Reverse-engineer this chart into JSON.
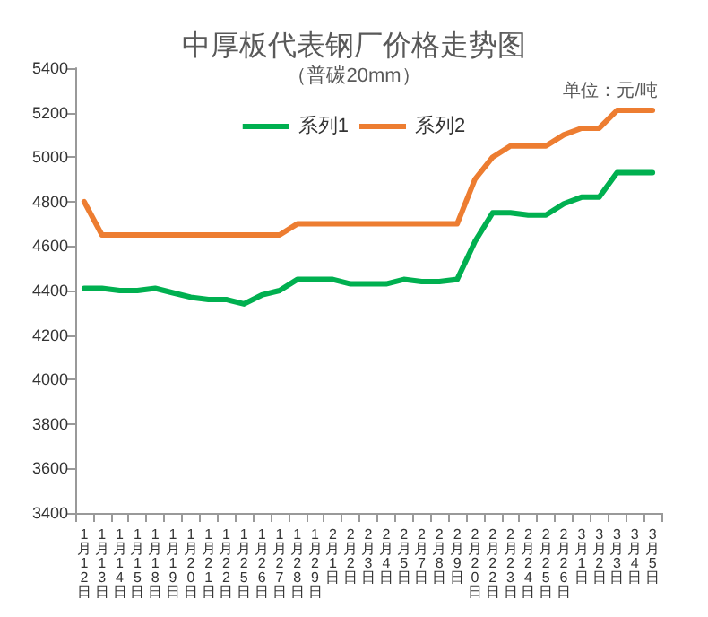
{
  "chart_data": {
    "type": "line",
    "title": "中厚板代表钢厂价格走势图",
    "subtitle": "（普碳20mm）",
    "annotations": [
      "单位：元/吨"
    ],
    "categories": [
      "1月12日",
      "1月13日",
      "1月14日",
      "1月15日",
      "1月18日",
      "1月19日",
      "1月20日",
      "1月21日",
      "1月22日",
      "1月25日",
      "1月26日",
      "1月27日",
      "1月28日",
      "1月29日",
      "2月1日",
      "2月2日",
      "2月3日",
      "2月4日",
      "2月5日",
      "2月7日",
      "2月8日",
      "2月9日",
      "2月20日",
      "2月22日",
      "2月23日",
      "2月24日",
      "2月25日",
      "2月26日",
      "3月1日",
      "3月2日",
      "3月3日",
      "3月4日",
      "3月5日"
    ],
    "series": [
      {
        "name": "系列1",
        "color": "#00b050",
        "values": [
          4410,
          4410,
          4400,
          4400,
          4410,
          4390,
          4370,
          4360,
          4360,
          4340,
          4380,
          4400,
          4450,
          4450,
          4450,
          4430,
          4430,
          4430,
          4450,
          4440,
          4440,
          4450,
          4620,
          4750,
          4750,
          4740,
          4740,
          4790,
          4820,
          4820,
          4930,
          4930,
          4930
        ]
      },
      {
        "name": "系列2",
        "color": "#ed7d31",
        "values": [
          4800,
          4650,
          4650,
          4650,
          4650,
          4650,
          4650,
          4650,
          4650,
          4650,
          4650,
          4650,
          4700,
          4700,
          4700,
          4700,
          4700,
          4700,
          4700,
          4700,
          4700,
          4700,
          4900,
          5000,
          5050,
          5050,
          5050,
          5100,
          5130,
          5130,
          5210,
          5210,
          5210
        ]
      }
    ],
    "ylim": [
      3400,
      5400
    ],
    "yticks": [
      3400,
      3600,
      3800,
      4000,
      4200,
      4400,
      4600,
      4800,
      5000,
      5200,
      5400
    ],
    "grid": false,
    "legend": "top",
    "marker": "none",
    "line_style": "solid"
  }
}
